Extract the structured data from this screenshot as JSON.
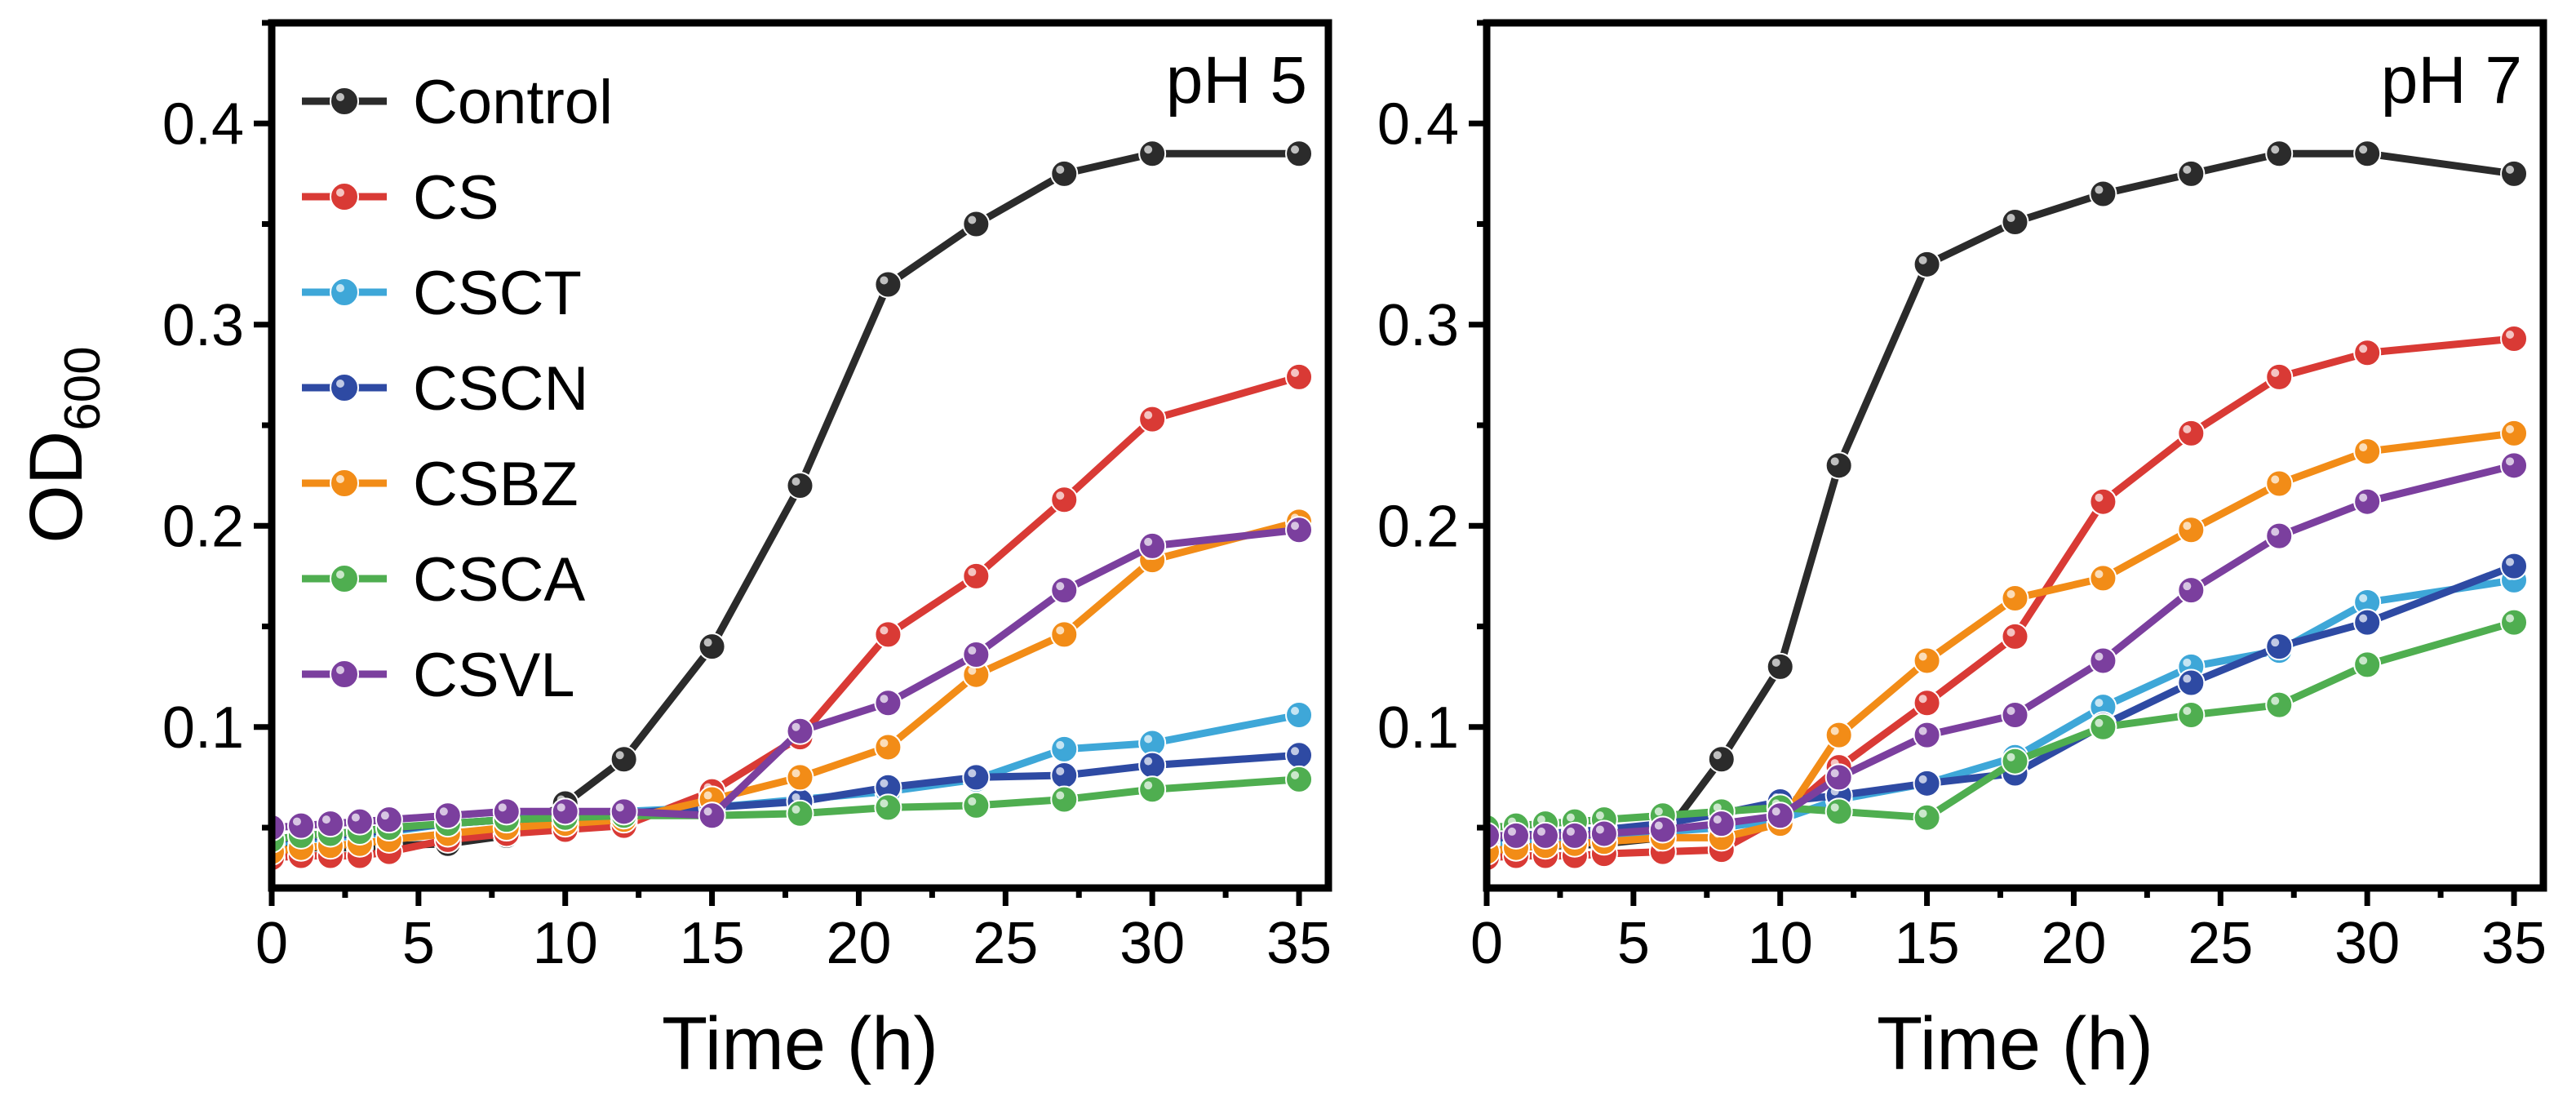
{
  "figure": {
    "ylabel_main": "OD",
    "ylabel_sub": "600"
  },
  "chart_data": [
    {
      "type": "line",
      "panel_label": "pH 5",
      "xlabel": "Time (h)",
      "xlim": [
        0,
        36
      ],
      "ylim": [
        0.02,
        0.45
      ],
      "xticks": [
        0,
        5,
        10,
        15,
        20,
        25,
        30,
        35
      ],
      "yticks": [
        0.1,
        0.2,
        0.3,
        0.4
      ],
      "xtick_labels": [
        "0",
        "5",
        "10",
        "15",
        "20",
        "25",
        "30",
        "35"
      ],
      "ytick_labels": [
        "0.1",
        "0.2",
        "0.3",
        "0.4"
      ],
      "legend_position": "top-left",
      "x": [
        0,
        1,
        2,
        3,
        4,
        6,
        8,
        10,
        12,
        15,
        18,
        21,
        24,
        27,
        30,
        35
      ],
      "series": [
        {
          "name": "Control",
          "color": "#2b2b2b",
          "values": [
            0.04,
            0.04,
            0.04,
            0.04,
            0.041,
            0.042,
            0.046,
            0.062,
            0.084,
            0.14,
            0.22,
            0.32,
            0.35,
            0.375,
            0.385,
            0.385
          ]
        },
        {
          "name": "CS",
          "color": "#d93a35",
          "values": [
            0.035,
            0.036,
            0.036,
            0.036,
            0.038,
            0.044,
            0.047,
            0.049,
            0.051,
            0.068,
            0.095,
            0.146,
            0.175,
            0.213,
            0.253,
            0.274
          ]
        },
        {
          "name": "CSCT",
          "color": "#3ea7d8",
          "values": [
            0.042,
            0.044,
            0.045,
            0.046,
            0.048,
            0.052,
            0.054,
            0.056,
            0.058,
            0.06,
            0.064,
            0.068,
            0.074,
            0.089,
            0.092,
            0.106
          ]
        },
        {
          "name": "CSCN",
          "color": "#2e4aa3",
          "values": [
            0.044,
            0.045,
            0.046,
            0.047,
            0.049,
            0.052,
            0.054,
            0.055,
            0.057,
            0.06,
            0.063,
            0.07,
            0.075,
            0.076,
            0.081,
            0.086
          ]
        },
        {
          "name": "CSBZ",
          "color": "#f28c17",
          "values": [
            0.038,
            0.04,
            0.041,
            0.042,
            0.044,
            0.047,
            0.05,
            0.052,
            0.054,
            0.064,
            0.075,
            0.09,
            0.126,
            0.146,
            0.183,
            0.202
          ]
        },
        {
          "name": "CSCA",
          "color": "#4fae50",
          "values": [
            0.044,
            0.046,
            0.047,
            0.048,
            0.05,
            0.052,
            0.054,
            0.055,
            0.056,
            0.056,
            0.057,
            0.06,
            0.061,
            0.064,
            0.069,
            0.074
          ]
        },
        {
          "name": "CSVL",
          "color": "#7b3f9e",
          "values": [
            0.05,
            0.051,
            0.052,
            0.053,
            0.054,
            0.056,
            0.058,
            0.058,
            0.058,
            0.056,
            0.098,
            0.112,
            0.136,
            0.168,
            0.19,
            0.198
          ]
        }
      ]
    },
    {
      "type": "line",
      "panel_label": "pH 7",
      "xlabel": "Time (h)",
      "xlim": [
        0,
        36
      ],
      "ylim": [
        0.02,
        0.45
      ],
      "xticks": [
        0,
        5,
        10,
        15,
        20,
        25,
        30,
        35
      ],
      "yticks": [
        0.1,
        0.2,
        0.3,
        0.4
      ],
      "xtick_labels": [
        "0",
        "5",
        "10",
        "15",
        "20",
        "25",
        "30",
        "35"
      ],
      "ytick_labels": [
        "0.1",
        "0.2",
        "0.3",
        "0.4"
      ],
      "x": [
        0,
        1,
        2,
        3,
        4,
        6,
        8,
        10,
        12,
        15,
        18,
        21,
        24,
        27,
        30,
        35
      ],
      "series": [
        {
          "name": "Control",
          "color": "#2b2b2b",
          "values": [
            0.04,
            0.04,
            0.041,
            0.041,
            0.042,
            0.045,
            0.084,
            0.13,
            0.23,
            0.33,
            0.351,
            0.365,
            0.375,
            0.385,
            0.385,
            0.375
          ]
        },
        {
          "name": "CS",
          "color": "#d93a35",
          "values": [
            0.035,
            0.036,
            0.036,
            0.036,
            0.037,
            0.038,
            0.039,
            0.055,
            0.08,
            0.112,
            0.145,
            0.212,
            0.246,
            0.274,
            0.286,
            0.293
          ]
        },
        {
          "name": "CSCT",
          "color": "#3ea7d8",
          "values": [
            0.042,
            0.043,
            0.044,
            0.045,
            0.046,
            0.048,
            0.05,
            0.054,
            0.064,
            0.072,
            0.085,
            0.11,
            0.13,
            0.138,
            0.162,
            0.173
          ]
        },
        {
          "name": "CSCN",
          "color": "#2e4aa3",
          "values": [
            0.044,
            0.046,
            0.047,
            0.048,
            0.049,
            0.052,
            0.057,
            0.063,
            0.066,
            0.072,
            0.077,
            0.101,
            0.122,
            0.14,
            0.152,
            0.18
          ]
        },
        {
          "name": "CSBZ",
          "color": "#f28c17",
          "values": [
            0.038,
            0.04,
            0.041,
            0.042,
            0.043,
            0.045,
            0.045,
            0.052,
            0.096,
            0.133,
            0.164,
            0.174,
            0.198,
            0.221,
            0.237,
            0.246
          ]
        },
        {
          "name": "CSCA",
          "color": "#4fae50",
          "values": [
            0.05,
            0.051,
            0.052,
            0.053,
            0.054,
            0.056,
            0.058,
            0.06,
            0.058,
            0.055,
            0.083,
            0.1,
            0.106,
            0.111,
            0.131,
            0.152
          ]
        },
        {
          "name": "CSVL",
          "color": "#7b3f9e",
          "values": [
            0.046,
            0.046,
            0.046,
            0.046,
            0.047,
            0.049,
            0.052,
            0.056,
            0.075,
            0.096,
            0.106,
            0.133,
            0.168,
            0.195,
            0.212,
            0.23
          ]
        }
      ]
    }
  ]
}
